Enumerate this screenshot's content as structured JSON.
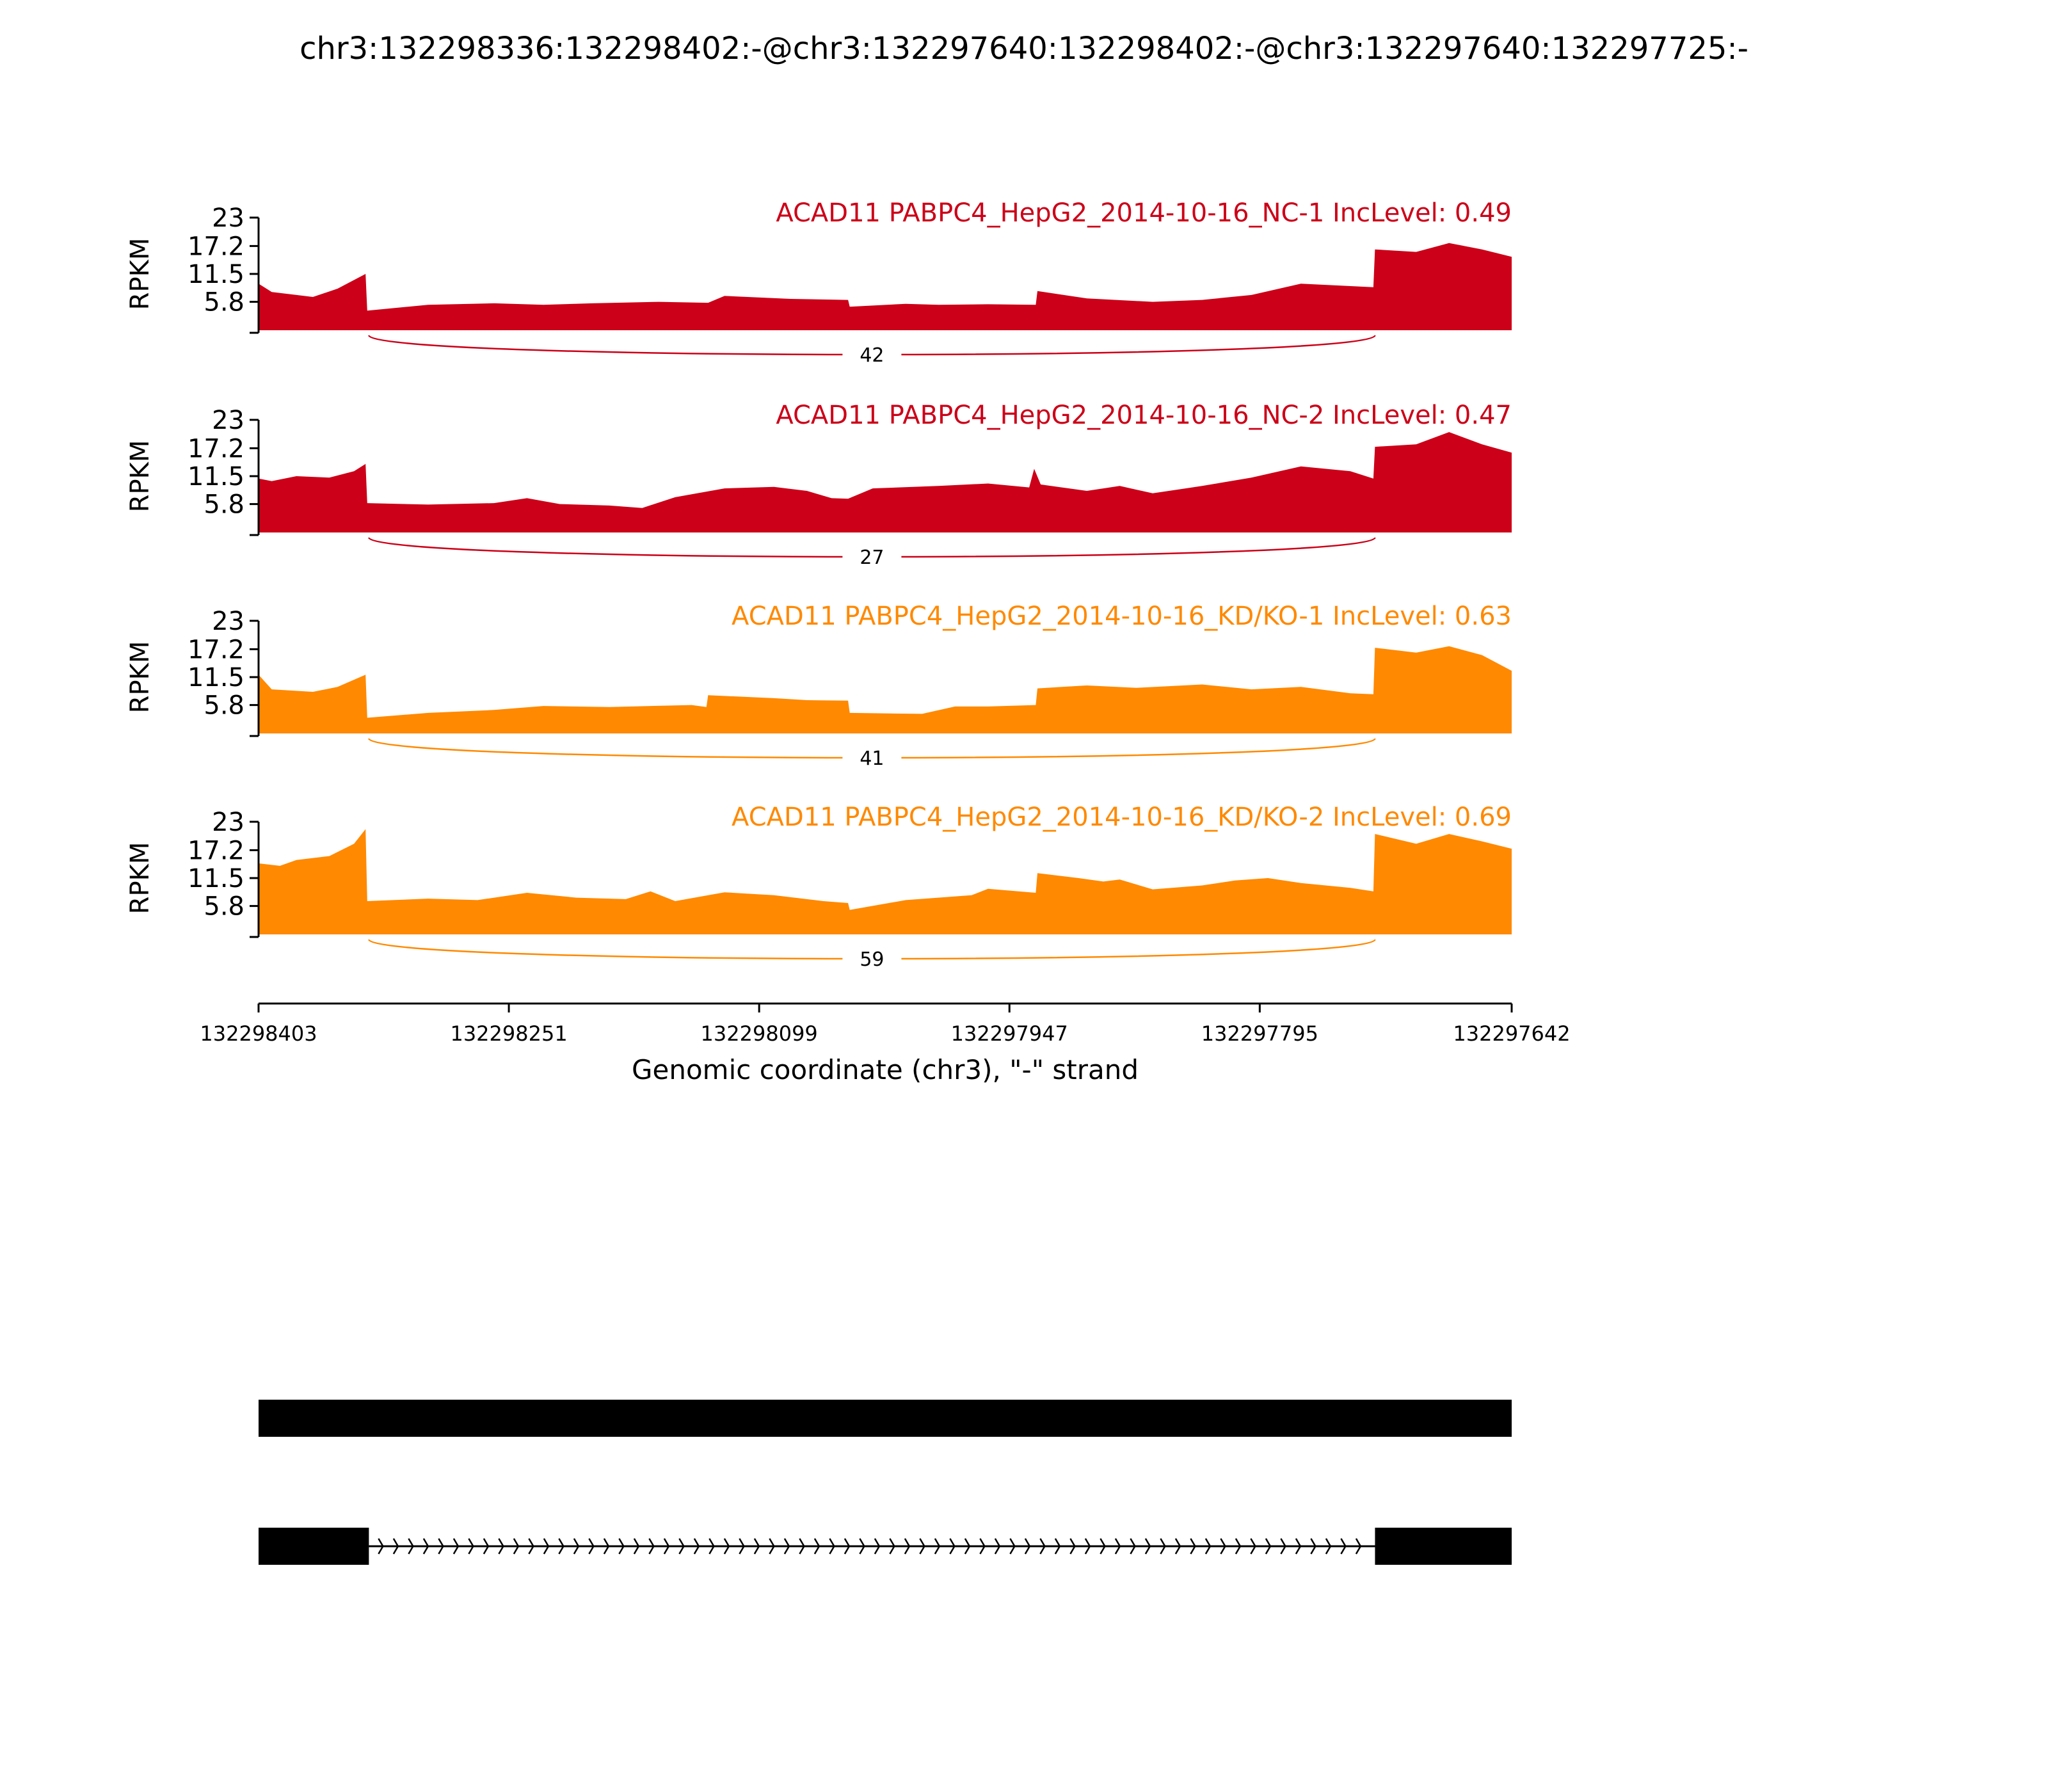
{
  "title": "chr3:132298336:132298402:-@chr3:132297640:132298402:-@chr3:132297640:132297725:-",
  "colors": {
    "nc": "#cc0018",
    "kd": "#ff8900",
    "axis": "#000000",
    "model": "#000000"
  },
  "chart_data": {
    "type": "area",
    "ylabel": "RPKM",
    "xlabel": "Genomic coordinate (chr3), \"-\" strand",
    "yticks": [
      "23",
      "17.2",
      "11.5",
      "5.8"
    ],
    "ytick_values": [
      23,
      17.2,
      11.5,
      5.8
    ],
    "ylim": [
      0,
      23
    ],
    "xlim": [
      132298403,
      132297642
    ],
    "xticks": [
      "132298403",
      "132298251",
      "132298099",
      "132297947",
      "132297795",
      "132297642"
    ],
    "xtick_values": [
      132298403,
      132298251,
      132298099,
      132297947,
      132297795,
      132297642
    ],
    "junction_span": [
      132298336,
      132297725
    ],
    "tracks": [
      {
        "label": "ACAD11 PABPC4_HepG2_2014-10-16_NC-1 IncLevel: 0.49",
        "color_key": "nc",
        "junction_count": "42",
        "profile": [
          [
            132298403,
            9.5
          ],
          [
            132298395,
            7.8
          ],
          [
            132298380,
            7.2
          ],
          [
            132298370,
            6.8
          ],
          [
            132298355,
            8.5
          ],
          [
            132298338,
            11.5
          ],
          [
            132298337,
            4.0
          ],
          [
            132298300,
            5.2
          ],
          [
            132298260,
            5.5
          ],
          [
            132298230,
            5.2
          ],
          [
            132298200,
            5.5
          ],
          [
            132298160,
            5.8
          ],
          [
            132298130,
            5.6
          ],
          [
            132298120,
            7.0
          ],
          [
            132298080,
            6.4
          ],
          [
            132298045,
            6.2
          ],
          [
            132298044,
            4.8
          ],
          [
            132298010,
            5.4
          ],
          [
            132297990,
            5.2
          ],
          [
            132297960,
            5.3
          ],
          [
            132297931,
            5.2
          ],
          [
            132297930,
            8.0
          ],
          [
            132297900,
            6.5
          ],
          [
            132297860,
            5.8
          ],
          [
            132297830,
            6.2
          ],
          [
            132297800,
            7.2
          ],
          [
            132297770,
            9.5
          ],
          [
            132297726,
            8.8
          ],
          [
            132297725,
            16.5
          ],
          [
            132297700,
            16.0
          ],
          [
            132297680,
            17.8
          ],
          [
            132297660,
            16.5
          ],
          [
            132297642,
            15.0
          ]
        ]
      },
      {
        "label": "ACAD11 PABPC4_HepG2_2014-10-16_NC-2 IncLevel: 0.47",
        "color_key": "nc",
        "junction_count": "27",
        "profile": [
          [
            132298403,
            11.0
          ],
          [
            132298395,
            10.5
          ],
          [
            132298380,
            11.5
          ],
          [
            132298360,
            11.2
          ],
          [
            132298345,
            12.5
          ],
          [
            132298338,
            14.0
          ],
          [
            132298337,
            6.0
          ],
          [
            132298300,
            5.7
          ],
          [
            132298260,
            6.0
          ],
          [
            132298240,
            7.0
          ],
          [
            132298220,
            5.8
          ],
          [
            132298190,
            5.5
          ],
          [
            132298170,
            5.0
          ],
          [
            132298150,
            7.2
          ],
          [
            132298120,
            9.0
          ],
          [
            132298090,
            9.3
          ],
          [
            132298070,
            8.5
          ],
          [
            132298055,
            7.0
          ],
          [
            132298045,
            6.9
          ],
          [
            132298030,
            9.0
          ],
          [
            132297990,
            9.5
          ],
          [
            132297960,
            10.0
          ],
          [
            132297935,
            9.2
          ],
          [
            132297932,
            13.0
          ],
          [
            132297928,
            9.8
          ],
          [
            132297900,
            8.5
          ],
          [
            132297880,
            9.5
          ],
          [
            132297860,
            8.0
          ],
          [
            132297830,
            9.5
          ],
          [
            132297800,
            11.2
          ],
          [
            132297770,
            13.5
          ],
          [
            132297740,
            12.5
          ],
          [
            132297726,
            11.0
          ],
          [
            132297725,
            17.5
          ],
          [
            132297700,
            18.0
          ],
          [
            132297680,
            20.5
          ],
          [
            132297660,
            18.0
          ],
          [
            132297642,
            16.3
          ]
        ]
      },
      {
        "label": "ACAD11 PABPC4_HepG2_2014-10-16_KD/KO-1 IncLevel: 0.63",
        "color_key": "kd",
        "junction_count": "41",
        "profile": [
          [
            132298403,
            12.0
          ],
          [
            132298395,
            9.0
          ],
          [
            132298370,
            8.5
          ],
          [
            132298355,
            9.5
          ],
          [
            132298338,
            12.0
          ],
          [
            132298337,
            3.2
          ],
          [
            132298300,
            4.2
          ],
          [
            132298260,
            4.8
          ],
          [
            132298230,
            5.6
          ],
          [
            132298190,
            5.4
          ],
          [
            132298140,
            5.8
          ],
          [
            132298131,
            5.4
          ],
          [
            132298130,
            7.8
          ],
          [
            132298090,
            7.2
          ],
          [
            132298070,
            6.8
          ],
          [
            132298045,
            6.7
          ],
          [
            132298044,
            4.2
          ],
          [
            132298000,
            4.0
          ],
          [
            132297980,
            5.5
          ],
          [
            132297960,
            5.5
          ],
          [
            132297931,
            5.8
          ],
          [
            132297930,
            9.2
          ],
          [
            132297900,
            9.8
          ],
          [
            132297870,
            9.3
          ],
          [
            132297830,
            10.0
          ],
          [
            132297800,
            9.0
          ],
          [
            132297770,
            9.5
          ],
          [
            132297740,
            8.2
          ],
          [
            132297726,
            8.0
          ],
          [
            132297725,
            17.5
          ],
          [
            132297700,
            16.5
          ],
          [
            132297680,
            17.8
          ],
          [
            132297660,
            16.0
          ],
          [
            132297642,
            12.8
          ]
        ]
      },
      {
        "label": "ACAD11 PABPC4_HepG2_2014-10-16_KD/KO-2 IncLevel: 0.69",
        "color_key": "kd",
        "junction_count": "59",
        "profile": [
          [
            132298403,
            14.5
          ],
          [
            132298390,
            14.0
          ],
          [
            132298380,
            15.2
          ],
          [
            132298360,
            16.0
          ],
          [
            132298345,
            18.5
          ],
          [
            132298338,
            21.5
          ],
          [
            132298337,
            6.8
          ],
          [
            132298300,
            7.3
          ],
          [
            132298270,
            7.0
          ],
          [
            132298240,
            8.5
          ],
          [
            132298210,
            7.5
          ],
          [
            132298180,
            7.2
          ],
          [
            132298165,
            8.8
          ],
          [
            132298150,
            6.8
          ],
          [
            132298120,
            8.6
          ],
          [
            132298090,
            8.0
          ],
          [
            132298060,
            6.8
          ],
          [
            132298045,
            6.4
          ],
          [
            132298044,
            5.0
          ],
          [
            132298010,
            7.0
          ],
          [
            132297970,
            8.0
          ],
          [
            132297960,
            9.3
          ],
          [
            132297931,
            8.5
          ],
          [
            132297930,
            12.5
          ],
          [
            132297905,
            11.5
          ],
          [
            132297890,
            10.8
          ],
          [
            132297880,
            11.2
          ],
          [
            132297860,
            9.2
          ],
          [
            132297830,
            10.0
          ],
          [
            132297810,
            11.0
          ],
          [
            132297790,
            11.5
          ],
          [
            132297770,
            10.5
          ],
          [
            132297740,
            9.5
          ],
          [
            132297726,
            8.8
          ],
          [
            132297725,
            20.5
          ],
          [
            132297700,
            18.5
          ],
          [
            132297680,
            20.5
          ],
          [
            132297660,
            19.0
          ],
          [
            132297642,
            17.5
          ]
        ]
      }
    ],
    "gene_models": [
      {
        "exons": [
          [
            132298403,
            132297642
          ]
        ],
        "introns": []
      },
      {
        "exons": [
          [
            132298403,
            132298336
          ],
          [
            132297725,
            132297642
          ]
        ],
        "introns": [
          [
            132298336,
            132297725
          ]
        ]
      }
    ]
  }
}
